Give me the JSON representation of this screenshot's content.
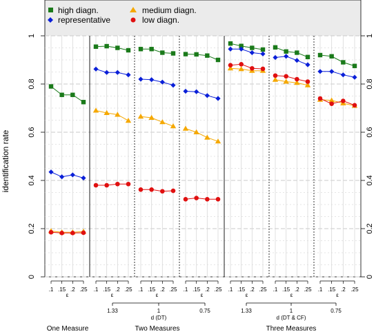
{
  "chart_data": {
    "type": "line",
    "ylabel": "identification rate",
    "ylim": [
      0,
      1
    ],
    "yticks": [
      "0",
      "0.2",
      "0.4",
      "0.6",
      "0.8",
      "1"
    ],
    "x_tick_labels": [
      ".1",
      ".15",
      ".2",
      ".25"
    ],
    "epsilon_label": "ε",
    "d_dt": {
      "label": "d (DT)",
      "ticks": [
        "1.33",
        "1",
        "0.75"
      ]
    },
    "d_dtcf": {
      "label": "d (DT & CF)",
      "ticks": [
        "1.33",
        "1",
        "0.75"
      ]
    },
    "group_labels": [
      "One Measure",
      "Two Measures",
      "Three Measures"
    ],
    "grid": true,
    "legend_position": "top-left",
    "series": [
      {
        "name": "high diagn.",
        "color": "#1a7a1a",
        "marker": "square"
      },
      {
        "name": "medium diagn.",
        "color": "#f5a800",
        "marker": "triangle"
      },
      {
        "name": "representative",
        "color": "#0a1fd8",
        "marker": "diamond"
      },
      {
        "name": "low diagn.",
        "color": "#e01010",
        "marker": "circle"
      }
    ],
    "panels": [
      {
        "high": [
          0.79,
          0.755,
          0.755,
          0.725
        ],
        "medium": [
          0.19,
          0.185,
          0.185,
          0.188
        ],
        "rep": [
          0.435,
          0.415,
          0.423,
          0.41
        ],
        "low": [
          0.185,
          0.182,
          0.182,
          0.183
        ]
      },
      {
        "high": [
          0.955,
          0.957,
          0.95,
          0.94
        ],
        "medium": [
          0.69,
          0.68,
          0.673,
          0.648
        ],
        "rep": [
          0.862,
          0.848,
          0.848,
          0.838
        ],
        "low": [
          0.38,
          0.38,
          0.385,
          0.385
        ]
      },
      {
        "high": [
          0.945,
          0.945,
          0.93,
          0.927
        ],
        "medium": [
          0.665,
          0.66,
          0.642,
          0.625
        ],
        "rep": [
          0.82,
          0.818,
          0.808,
          0.795
        ],
        "low": [
          0.362,
          0.362,
          0.355,
          0.357
        ]
      },
      {
        "high": [
          0.924,
          0.923,
          0.918,
          0.9
        ],
        "medium": [
          0.615,
          0.6,
          0.578,
          0.562
        ],
        "rep": [
          0.77,
          0.768,
          0.752,
          0.74
        ],
        "low": [
          0.322,
          0.327,
          0.322,
          0.322
        ]
      },
      {
        "high": [
          0.968,
          0.958,
          0.95,
          0.943
        ],
        "medium": [
          0.865,
          0.862,
          0.855,
          0.855
        ],
        "rep": [
          0.945,
          0.945,
          0.93,
          0.925
        ],
        "low": [
          0.878,
          0.882,
          0.865,
          0.863
        ]
      },
      {
        "high": [
          0.952,
          0.935,
          0.93,
          0.912
        ],
        "medium": [
          0.818,
          0.81,
          0.805,
          0.795
        ],
        "rep": [
          0.91,
          0.915,
          0.898,
          0.88
        ],
        "low": [
          0.835,
          0.832,
          0.82,
          0.81
        ]
      },
      {
        "high": [
          0.92,
          0.915,
          0.89,
          0.875
        ],
        "medium": [
          0.735,
          0.732,
          0.72,
          0.71
        ],
        "rep": [
          0.852,
          0.852,
          0.838,
          0.828
        ],
        "low": [
          0.74,
          0.718,
          0.73,
          0.712
        ]
      }
    ]
  }
}
